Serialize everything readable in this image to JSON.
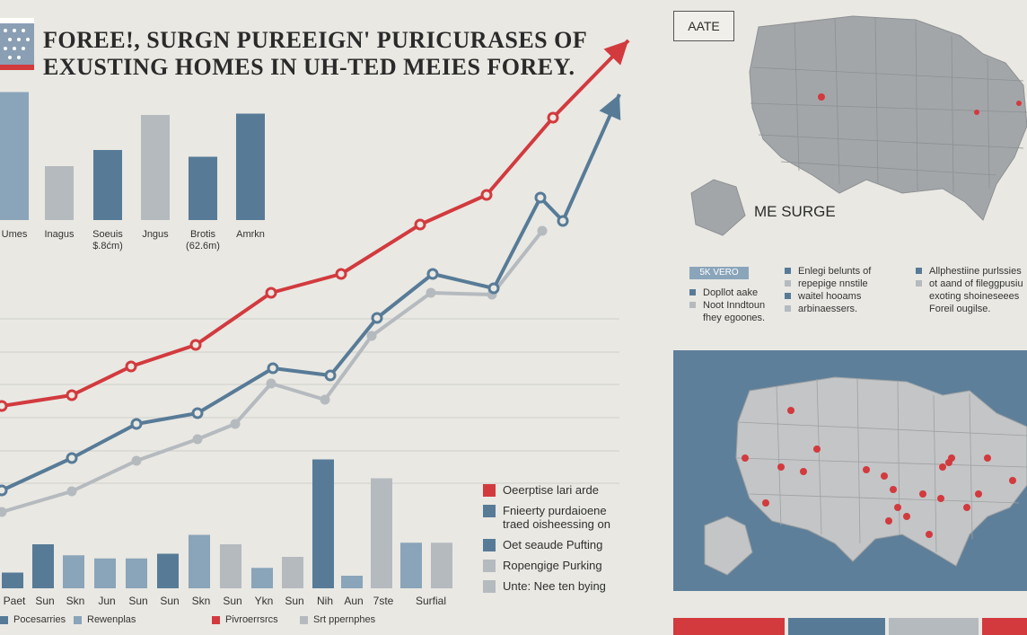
{
  "header": {
    "title_line1": "FOREE!, SURGN PUREEIGN' PURICURASES OF",
    "title_line2": "EXUSTING HOMES IN UH-TED MEIES FOREY."
  },
  "colors": {
    "red": "#d23a3e",
    "blue": "#577b97",
    "gray": "#b5babf",
    "light_blue": "#8aa4ba",
    "map_gray": "#a3a6a9",
    "map_bg": "#5e7f99"
  },
  "chart_data": [
    {
      "type": "bar",
      "categories": [
        "Umes",
        "Inagus",
        "Soeuis",
        "Jngus",
        "Brotis",
        "Amrkn"
      ],
      "category_sublabels": [
        "",
        "",
        "$.8ćm)",
        "",
        "(62.6m)",
        ""
      ],
      "values": [
        95,
        40,
        52,
        78,
        47,
        79
      ],
      "ylim": [
        0,
        100
      ]
    },
    {
      "type": "line",
      "x": [
        0,
        1,
        2,
        3,
        4,
        5,
        6,
        7,
        8,
        9,
        10,
        11
      ],
      "series": [
        {
          "color": "#d23a3e",
          "values": [
            42,
            46,
            55,
            62,
            76,
            86,
            102,
            112,
            123,
            148,
            167,
            200
          ]
        },
        {
          "color": "#577b97",
          "values": [
            10,
            22,
            33,
            36,
            48,
            45,
            70,
            92,
            88,
            115,
            110,
            162
          ]
        },
        {
          "color": "#b5babf",
          "values": [
            6,
            14,
            23,
            30,
            35,
            54,
            50,
            75,
            91,
            91,
            106,
            0
          ]
        }
      ],
      "ylim": [
        0,
        200
      ]
    },
    {
      "type": "bar",
      "categories": [
        "Paet",
        "Sun",
        "Skn",
        "Jun",
        "Sun",
        "Sun",
        "Skn",
        "Sun",
        "Ykn",
        "Sun",
        "Nih",
        "Aun",
        "7ste",
        "Surfial"
      ],
      "series_values": [
        [
          10,
          28,
          21,
          0,
          19,
          0,
          34,
          0,
          13,
          0,
          80,
          0,
          29,
          0
        ],
        [
          0,
          0,
          0,
          19,
          0,
          22,
          0,
          28,
          0,
          20,
          0,
          70,
          0,
          29
        ]
      ],
      "highlight_index": 10,
      "ylim": [
        0,
        100
      ]
    }
  ],
  "bottom_legend": [
    "Pocesarries",
    "Rewenplas",
    "Pivroerrsrcs",
    "Srt ppernphes"
  ],
  "right_legend": [
    {
      "color": "#d23a3e",
      "text": "Oeerptise lari arde"
    },
    {
      "color": "#577b97",
      "text": "Fnieerty purdaioene"
    },
    {
      "color": "none",
      "text": "traed oisheessing on"
    },
    {
      "color": "#577b97",
      "text": "Oet seaude Pufting"
    },
    {
      "color": "#b5babf",
      "text": "Ropengige Purking"
    },
    {
      "color": "#b5babf",
      "text": "Unte: Nee ten bying"
    }
  ],
  "map_top": {
    "label": "AATE",
    "surge_label": "ME SURGE"
  },
  "key_block": {
    "badge": "5K VERO",
    "col1": [
      "Dopllot aake",
      "Noot Inndtoun",
      "fhey egoones."
    ],
    "col2": [
      "Enlegi belunts of",
      "repepige nnstile",
      "waitel hooams",
      "arbinaessers."
    ],
    "col3": [
      "Allphestiine purlssies",
      "ot aand of fileggpusiu",
      "exoting shoineseees",
      "Foreil ougilse."
    ]
  },
  "footer_colors": [
    "#d23a3e",
    "#577b97",
    "#b5babf",
    "#d23a3e"
  ]
}
